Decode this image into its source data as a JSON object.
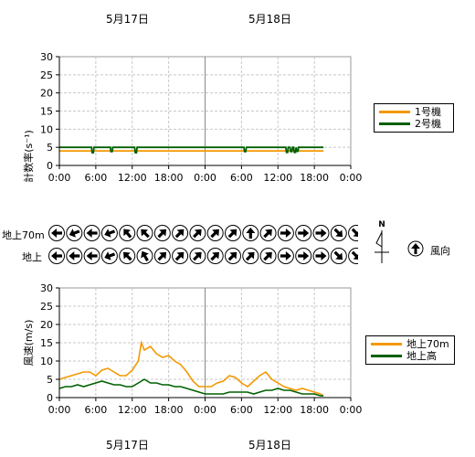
{
  "dates": {
    "top": [
      "5月17日",
      "5月18日"
    ],
    "bottom": [
      "5月17日",
      "5月18日"
    ]
  },
  "wind_direction": {
    "row_labels": [
      "地上70m",
      "地上"
    ],
    "compass_label": "N",
    "legend_label": "風向",
    "upper_angles": [
      270,
      250,
      270,
      250,
      320,
      315,
      45,
      45,
      45,
      45,
      45,
      0,
      45,
      90,
      90,
      90,
      135,
      135
    ],
    "lower_angles": [
      270,
      270,
      270,
      250,
      315,
      330,
      45,
      45,
      45,
      45,
      45,
      45,
      45,
      90,
      90,
      90,
      135,
      135
    ]
  },
  "chart_data": [
    {
      "type": "line",
      "ylabel": "計数率(s⁻¹)",
      "ylim": [
        0,
        30
      ],
      "yticks": [
        "0",
        "5",
        "10",
        "15",
        "20",
        "25",
        "30"
      ],
      "xlim": [
        0,
        48
      ],
      "xticks": [
        "0:00",
        "6:00",
        "12:00",
        "18:00",
        "0:00",
        "6:00",
        "12:00",
        "18:00",
        "0:00"
      ],
      "grid": true,
      "legend_position": "right",
      "series": [
        {
          "name": "1号機",
          "color": "#f39800",
          "base": 4.0,
          "end_hour": 43.5,
          "dips": []
        },
        {
          "name": "2号機",
          "color": "#006000",
          "base": 5.0,
          "end_hour": 43.5,
          "dips": [
            [
              5.5,
              3.5
            ],
            [
              8.6,
              3.8
            ],
            [
              12.6,
              3.5
            ],
            [
              30.6,
              3.8
            ],
            [
              37.5,
              3.6
            ],
            [
              38.2,
              3.8
            ],
            [
              38.8,
              3.6
            ],
            [
              39.2,
              3.9
            ]
          ]
        }
      ]
    },
    {
      "type": "line",
      "ylabel": "風速(m/s)",
      "ylim": [
        0,
        30
      ],
      "yticks": [
        "0",
        "5",
        "10",
        "15",
        "20",
        "25",
        "30"
      ],
      "xlim": [
        0,
        48
      ],
      "xticks": [
        "0:00",
        "6:00",
        "12:00",
        "18:00",
        "0:00",
        "6:00",
        "12:00",
        "18:00",
        "0:00"
      ],
      "grid": true,
      "legend_position": "right",
      "series": [
        {
          "name": "地上70m",
          "color": "#f39800",
          "x": [
            0,
            1,
            2,
            3,
            4,
            5,
            6,
            7,
            8,
            9,
            10,
            11,
            12,
            13,
            13.5,
            14,
            15,
            16,
            17,
            18,
            19,
            20,
            21,
            22,
            23,
            24,
            25,
            26,
            27,
            28,
            29,
            30,
            31,
            32,
            33,
            34,
            35,
            36,
            37,
            38,
            39,
            40,
            41,
            42,
            43,
            43.5
          ],
          "y": [
            5,
            5.5,
            6,
            6.5,
            7,
            7,
            6,
            7.5,
            8,
            7,
            6,
            6,
            7.5,
            10,
            15,
            13,
            14,
            12,
            11,
            11.5,
            10,
            9,
            7,
            4.5,
            3,
            3,
            3,
            4,
            4.5,
            6,
            5.5,
            4,
            3,
            4.5,
            6,
            7,
            5,
            4,
            3,
            2.5,
            2,
            2.5,
            2,
            1.5,
            1,
            0.5
          ]
        },
        {
          "name": "地上高",
          "color": "#006000",
          "x": [
            0,
            1,
            2,
            3,
            4,
            5,
            6,
            7,
            8,
            9,
            10,
            11,
            12,
            13,
            14,
            15,
            16,
            17,
            18,
            19,
            20,
            21,
            22,
            23,
            24,
            25,
            26,
            27,
            28,
            29,
            30,
            31,
            32,
            33,
            34,
            35,
            36,
            37,
            38,
            39,
            40,
            41,
            42,
            43,
            43.5
          ],
          "y": [
            2.5,
            3,
            3,
            3.5,
            3,
            3.5,
            4,
            4.5,
            4,
            3.5,
            3.5,
            3,
            3,
            4,
            5,
            4,
            4,
            3.5,
            3.5,
            3,
            3,
            2.5,
            2,
            1.5,
            1,
            1,
            1,
            1,
            1.5,
            1.5,
            1.5,
            1.5,
            1,
            1.5,
            2,
            2,
            2.5,
            2,
            2,
            1.5,
            1,
            1,
            1,
            0.5,
            0.5
          ]
        }
      ]
    }
  ]
}
